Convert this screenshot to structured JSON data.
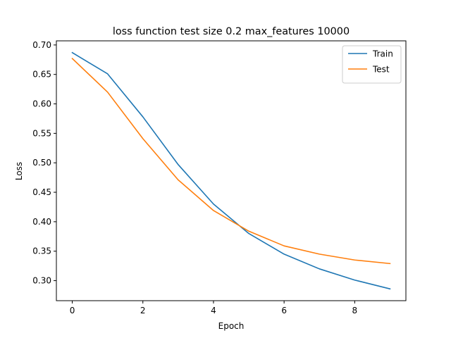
{
  "chart_data": {
    "type": "line",
    "title": "loss function test size 0.2 max_features 10000",
    "xlabel": "Epoch",
    "ylabel": "Loss",
    "x": [
      0,
      1,
      2,
      3,
      4,
      5,
      6,
      7,
      8,
      9
    ],
    "xlim": [
      -0.45,
      9.45
    ],
    "ylim": [
      0.266,
      0.707
    ],
    "xticks": [
      0,
      2,
      4,
      6,
      8
    ],
    "xtick_labels": [
      "0",
      "2",
      "4",
      "6",
      "8"
    ],
    "yticks": [
      0.3,
      0.35,
      0.4,
      0.45,
      0.5,
      0.55,
      0.6,
      0.65,
      0.7
    ],
    "ytick_labels": [
      "0.30",
      "0.35",
      "0.40",
      "0.45",
      "0.50",
      "0.55",
      "0.60",
      "0.65",
      "0.70"
    ],
    "grid": false,
    "legend_position": "top-right",
    "series": [
      {
        "name": "Train",
        "color": "#1f77b4",
        "values": [
          0.687,
          0.651,
          0.578,
          0.497,
          0.43,
          0.38,
          0.345,
          0.32,
          0.301,
          0.286
        ]
      },
      {
        "name": "Test",
        "color": "#ff7f0e",
        "values": [
          0.677,
          0.62,
          0.541,
          0.471,
          0.419,
          0.384,
          0.359,
          0.345,
          0.335,
          0.329
        ]
      }
    ]
  }
}
